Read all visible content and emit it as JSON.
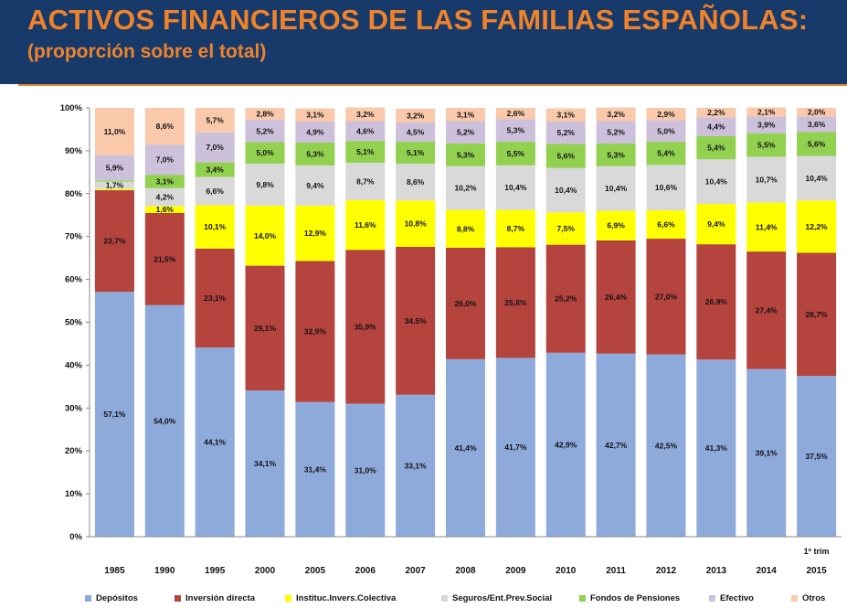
{
  "header": {
    "title": "ACTIVOS FINANCIEROS DE LAS FAMILIAS ESPAÑOLAS:",
    "subtitle": "(proporción sobre el total)"
  },
  "chart_data": {
    "type": "bar",
    "stacked": true,
    "title": "ACTIVOS FINANCIEROS DE LAS FAMILIAS ESPAÑOLAS: (proporción sobre el total)",
    "xlabel": "",
    "ylabel": "",
    "ylim": [
      0,
      100
    ],
    "y_ticks": [
      "0%",
      "10%",
      "20%",
      "30%",
      "40%",
      "50%",
      "60%",
      "70%",
      "80%",
      "90%",
      "100%"
    ],
    "categories": [
      "1985",
      "1990",
      "1995",
      "2000",
      "2005",
      "2006",
      "2007",
      "2008",
      "2009",
      "2010",
      "2011",
      "2012",
      "2013",
      "2014",
      "2015"
    ],
    "category_note": "1º trim",
    "series": [
      {
        "name": "Depósitos",
        "color": "#8eaadb",
        "values": [
          57.1,
          54.0,
          44.1,
          34.1,
          31.4,
          31.0,
          33.1,
          41.4,
          41.7,
          42.9,
          42.7,
          42.5,
          41.3,
          39.1,
          37.5
        ],
        "labels": [
          "57,1%",
          "54,0%",
          "44,1%",
          "34,1%",
          "31,4%",
          "31,0%",
          "33,1%",
          "41,4%",
          "41,7%",
          "42,9%",
          "42,7%",
          "42,5%",
          "41,3%",
          "39,1%",
          "37,5%"
        ]
      },
      {
        "name": "Inversión directa",
        "color": "#b5443f",
        "values": [
          23.7,
          21.5,
          23.1,
          29.1,
          32.9,
          35.9,
          34.5,
          26.0,
          25.8,
          25.2,
          26.4,
          27.0,
          26.9,
          27.4,
          28.7
        ],
        "labels": [
          "23,7%",
          "21,5%",
          "23,1%",
          "29,1%",
          "32,9%",
          "35,9%",
          "34,5%",
          "26,0%",
          "25,8%",
          "25,2%",
          "26,4%",
          "27,0%",
          "26,9%",
          "27,4%",
          "28,7%"
        ]
      },
      {
        "name": "Instituc.Invers.Colectiva",
        "color": "#ffff00",
        "values": [
          0.3,
          1.6,
          10.1,
          14.0,
          12.9,
          11.6,
          10.8,
          8.8,
          8.7,
          7.5,
          6.9,
          6.6,
          9.4,
          11.4,
          12.2
        ],
        "labels": [
          "",
          "1,6%",
          "10,1%",
          "14,0%",
          "12,9%",
          "11,6%",
          "10,8%",
          "8,8%",
          "8,7%",
          "7,5%",
          "6,9%",
          "6,6%",
          "9,4%",
          "11,4%",
          "12,2%"
        ]
      },
      {
        "name": "Seguros/Ent.Prev.Social",
        "color": "#d9d9d9",
        "values": [
          1.7,
          4.2,
          6.6,
          9.8,
          9.4,
          8.7,
          8.6,
          10.2,
          10.4,
          10.4,
          10.4,
          10.6,
          10.4,
          10.7,
          10.4
        ],
        "labels": [
          "1,7%",
          "4,2%",
          "6,6%",
          "9,8%",
          "9,4%",
          "8,7%",
          "8,6%",
          "10,2%",
          "10,4%",
          "10,4%",
          "10,4%",
          "10,6%",
          "10,4%",
          "10,7%",
          "10,4%"
        ]
      },
      {
        "name": "Fondos de Pensiones",
        "color": "#92d050",
        "values": [
          0.3,
          3.1,
          3.4,
          5.0,
          5.3,
          5.1,
          5.1,
          5.3,
          5.5,
          5.6,
          5.3,
          5.4,
          5.4,
          5.5,
          5.6
        ],
        "labels": [
          "",
          "3,1%",
          "3,4%",
          "5,0%",
          "5,3%",
          "5,1%",
          "5,1%",
          "5,3%",
          "5,5%",
          "5,6%",
          "5,3%",
          "5,4%",
          "5,4%",
          "5,5%",
          "5,6%"
        ]
      },
      {
        "name": "Efectivo",
        "color": "#ccc0da",
        "values": [
          5.9,
          7.0,
          7.0,
          5.2,
          4.9,
          4.6,
          4.5,
          5.2,
          5.3,
          5.2,
          5.2,
          5.0,
          4.4,
          3.9,
          3.6
        ],
        "labels": [
          "5,9%",
          "7,0%",
          "7,0%",
          "5,2%",
          "4,9%",
          "4,6%",
          "4,5%",
          "5,2%",
          "5,3%",
          "5,2%",
          "5,2%",
          "5,0%",
          "4,4%",
          "3,9%",
          "3,6%"
        ]
      },
      {
        "name": "Otros",
        "color": "#fac8aa",
        "values": [
          11.0,
          8.6,
          5.7,
          2.8,
          3.1,
          3.2,
          3.2,
          3.1,
          2.6,
          3.1,
          3.2,
          2.9,
          2.2,
          2.1,
          2.0
        ],
        "labels": [
          "11,0%",
          "8,6%",
          "5,7%",
          "2,8%",
          "3,1%",
          "3,2%",
          "3,2%",
          "3,1%",
          "2,6%",
          "3,1%",
          "3,2%",
          "2,9%",
          "2,2%",
          "2,1%",
          "2,0%"
        ]
      }
    ],
    "legend_position": "bottom",
    "grid": false
  }
}
